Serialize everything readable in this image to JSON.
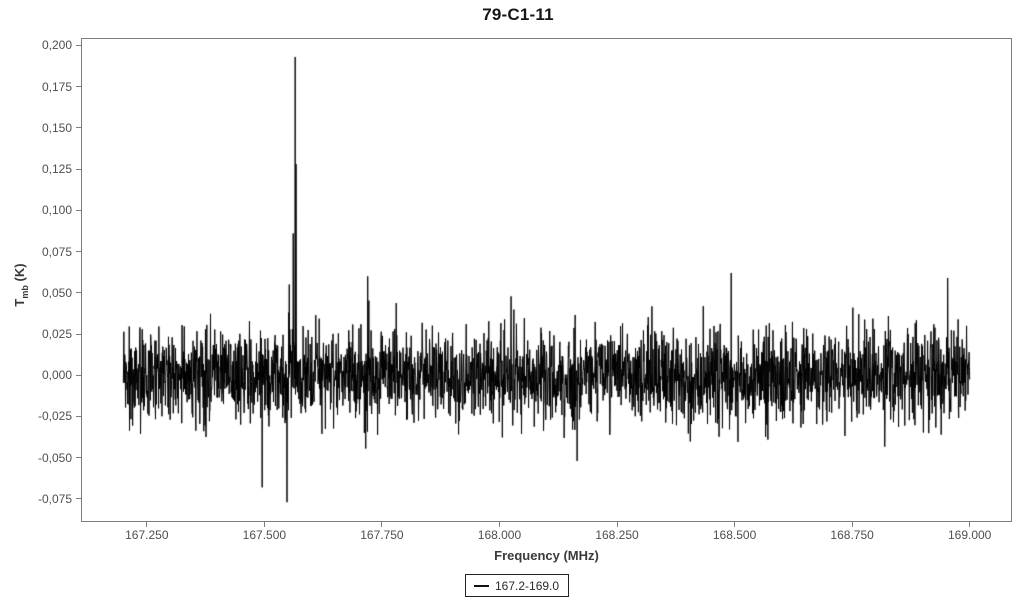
{
  "page": {
    "title": "79-C1-11"
  },
  "axes": {
    "x_label": "Frequency (MHz)",
    "y_label_base": "T",
    "y_label_sub": "mb",
    "y_label_unit": " (K)"
  },
  "legend": {
    "label": "167.2-169.0"
  },
  "colors": {
    "line": "#000000",
    "frame": "#7d7d7d",
    "tick_label": "#4f4f4f",
    "axis_title": "#3a3a3a",
    "title": "#161616",
    "background": "#ffffff"
  },
  "chart_data": {
    "type": "line",
    "title": "79-C1-11",
    "xlabel": "Frequency (MHz)",
    "ylabel": "T_mb (K)",
    "grid": false,
    "legend_position": "bottom-center",
    "xlim": [
      167.11,
      169.09
    ],
    "ylim": [
      -0.089,
      0.2045
    ],
    "x_ticks": [
      167.25,
      167.5,
      167.75,
      168.0,
      168.25,
      168.5,
      168.75,
      169.0
    ],
    "x_tick_labels": [
      "167.250",
      "167.500",
      "167.750",
      "168.000",
      "168.250",
      "168.500",
      "168.750",
      "169.000"
    ],
    "y_ticks": [
      0.2,
      0.175,
      0.15,
      0.125,
      0.1,
      0.075,
      0.05,
      0.025,
      0.0,
      -0.025,
      -0.05,
      -0.075
    ],
    "y_tick_labels": [
      "0,200",
      "0,175",
      "0,150",
      "0,125",
      "0,100",
      "0,075",
      "0,050",
      "0,025",
      "0,000",
      "-0,025",
      "-0,050",
      "-0,075"
    ],
    "series": [
      {
        "name": "167.2-169.0",
        "color": "#000000",
        "x_start": 167.2,
        "x_end": 169.0,
        "points_n": 3000,
        "baseline": 0.0,
        "noise_sigma": 0.0135,
        "tail_prob": 0.004,
        "seed": 1979,
        "features": [
          {
            "x": 167.5655,
            "y": 0.193
          },
          {
            "x": 167.5672,
            "y": 0.128
          },
          {
            "x": 167.5612,
            "y": 0.086
          },
          {
            "x": 167.553,
            "y": 0.055
          },
          {
            "x": 167.72,
            "y": 0.06
          },
          {
            "x": 168.493,
            "y": 0.062
          },
          {
            "x": 168.953,
            "y": 0.059
          },
          {
            "x": 167.495,
            "y": -0.068
          },
          {
            "x": 167.548,
            "y": -0.077
          },
          {
            "x": 168.165,
            "y": -0.052
          }
        ]
      }
    ]
  }
}
